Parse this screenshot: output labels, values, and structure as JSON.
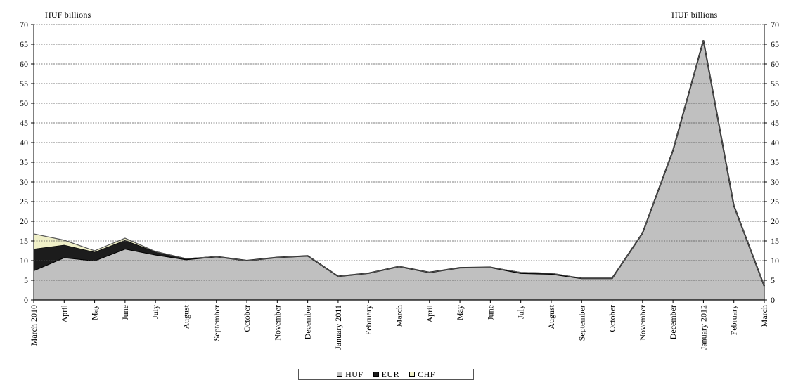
{
  "chart_data": {
    "type": "area",
    "stacked": true,
    "left_unit_label": "HUF billions",
    "right_unit_label": "HUF billions",
    "ylim": [
      0,
      70
    ],
    "y_ticks": [
      0,
      5,
      10,
      15,
      20,
      25,
      30,
      35,
      40,
      45,
      50,
      55,
      60,
      65,
      70
    ],
    "grid": true,
    "legend_position": "bottom",
    "categories": [
      "March 2010",
      "April",
      "May",
      "June",
      "July",
      "August",
      "September",
      "October",
      "November",
      "December",
      "January 2011",
      "February",
      "March",
      "April",
      "May",
      "June",
      "July",
      "August",
      "September",
      "October",
      "November",
      "December",
      "January 2012",
      "February",
      "March"
    ],
    "series": [
      {
        "name": "HUF",
        "color": "#c0c0c0",
        "values": [
          7.5,
          10.8,
          10.0,
          13.0,
          11.5,
          10.3,
          11.0,
          10.0,
          10.8,
          11.2,
          6.0,
          6.8,
          8.5,
          7.0,
          8.2,
          8.3,
          6.8,
          6.6,
          5.5,
          5.5,
          17.0,
          38.0,
          66.0,
          24.0,
          3.5
        ]
      },
      {
        "name": "EUR",
        "color": "#1c1c1c",
        "values": [
          5.5,
          3.2,
          2.2,
          2.2,
          0.8,
          0.2,
          0.0,
          0.0,
          0.0,
          0.0,
          0.0,
          0.0,
          0.0,
          0.0,
          0.0,
          0.0,
          0.2,
          0.2,
          0.0,
          0.0,
          0.0,
          0.0,
          0.0,
          0.0,
          0.0
        ]
      },
      {
        "name": "CHF",
        "color": "#f0f0c8",
        "values": [
          3.8,
          1.2,
          0.3,
          0.5,
          0.0,
          0.0,
          0.0,
          0.0,
          0.0,
          0.0,
          0.0,
          0.0,
          0.0,
          0.0,
          0.0,
          0.0,
          0.0,
          0.0,
          0.0,
          0.0,
          0.0,
          0.0,
          0.0,
          0.0,
          0.0
        ]
      }
    ]
  }
}
